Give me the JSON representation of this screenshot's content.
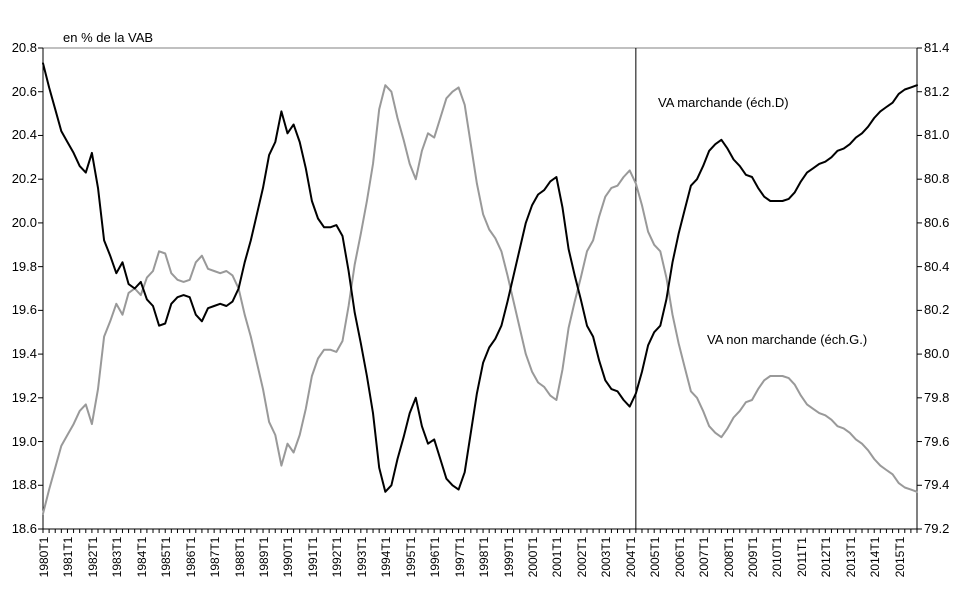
{
  "chart_data": {
    "type": "line",
    "title": "en % de la VAB",
    "x_start": "1980T1",
    "x_end": "2015T4",
    "x_tick_label_every": 4,
    "x_tick_labels": [
      "1980T1",
      "1981T1",
      "1982T1",
      "1983T1",
      "1984T1",
      "1985T1",
      "1986T1",
      "1987T1",
      "1988T1",
      "1989T1",
      "1990T1",
      "1991T1",
      "1992T1",
      "1993T1",
      "1994T1",
      "1995T1",
      "1996T1",
      "1997T1",
      "1998T1",
      "1999T1",
      "2000T1",
      "2001T1",
      "2002T1",
      "2003T1",
      "2004T1",
      "2005T1",
      "2006T1",
      "2007T1",
      "2008T1",
      "2009T1",
      "2010T1",
      "2011T1",
      "2012T1",
      "2013T1",
      "2014T1",
      "2015T1"
    ],
    "left_axis": {
      "min": 18.6,
      "max": 20.8,
      "step": 0.2,
      "ticks": [
        "20.8",
        "20.6",
        "20.4",
        "20.2",
        "20.0",
        "19.8",
        "19.6",
        "19.4",
        "19.2",
        "19.0",
        "18.8",
        "18.6"
      ]
    },
    "right_axis": {
      "min": 79.2,
      "max": 81.4,
      "step": 0.2,
      "ticks": [
        "81.4",
        "81.2",
        "81.0",
        "80.8",
        "80.6",
        "80.4",
        "80.2",
        "80.0",
        "79.8",
        "79.6",
        "79.4",
        "79.2"
      ]
    },
    "vertical_marker_quarter": "2004T2",
    "grid": "off",
    "colors": {
      "marchande": "#000000",
      "non_marchande": "#999999",
      "frame_top": "#808080",
      "axis": "#000000"
    },
    "series": [
      {
        "name": "VA marchande (éch.D)",
        "axis": "right",
        "color": "#000000",
        "values": [
          81.33,
          81.22,
          81.12,
          81.02,
          80.97,
          80.92,
          80.86,
          80.83,
          80.92,
          80.76,
          80.52,
          80.45,
          80.37,
          80.42,
          80.32,
          80.3,
          80.33,
          80.25,
          80.22,
          80.13,
          80.14,
          80.23,
          80.26,
          80.27,
          80.26,
          80.18,
          80.15,
          80.21,
          80.22,
          80.23,
          80.22,
          80.24,
          80.3,
          80.42,
          80.52,
          80.64,
          80.76,
          80.91,
          80.97,
          81.11,
          81.01,
          81.05,
          80.97,
          80.85,
          80.7,
          80.62,
          80.58,
          80.58,
          80.59,
          80.54,
          80.38,
          80.19,
          80.05,
          79.9,
          79.73,
          79.48,
          79.37,
          79.4,
          79.52,
          79.62,
          79.73,
          79.8,
          79.67,
          79.59,
          79.61,
          79.52,
          79.43,
          79.4,
          79.38,
          79.46,
          79.64,
          79.82,
          79.96,
          80.03,
          80.07,
          80.13,
          80.24,
          80.36,
          80.48,
          80.6,
          80.68,
          80.73,
          80.75,
          80.79,
          80.81,
          80.67,
          80.48,
          80.36,
          80.25,
          80.13,
          80.08,
          79.97,
          79.88,
          79.84,
          79.83,
          79.79,
          79.76,
          79.82,
          79.92,
          80.04,
          80.1,
          80.13,
          80.25,
          80.42,
          80.55,
          80.66,
          80.77,
          80.8,
          80.86,
          80.93,
          80.96,
          80.98,
          80.94,
          80.89,
          80.86,
          80.82,
          80.81,
          80.76,
          80.72,
          80.7,
          80.7,
          80.7,
          80.71,
          80.74,
          80.79,
          80.83,
          80.85,
          80.87,
          80.88,
          80.9,
          80.93,
          80.94,
          80.96,
          80.99,
          81.01,
          81.04,
          81.08,
          81.11,
          81.13,
          81.15,
          81.19,
          81.21,
          81.22,
          81.23
        ]
      },
      {
        "name": "VA non marchande (éch.G.)",
        "axis": "left",
        "color": "#999999",
        "values": [
          18.67,
          18.78,
          18.88,
          18.98,
          19.03,
          19.08,
          19.14,
          19.17,
          19.08,
          19.24,
          19.48,
          19.55,
          19.63,
          19.58,
          19.68,
          19.7,
          19.67,
          19.75,
          19.78,
          19.87,
          19.86,
          19.77,
          19.74,
          19.73,
          19.74,
          19.82,
          19.85,
          19.79,
          19.78,
          19.77,
          19.78,
          19.76,
          19.7,
          19.58,
          19.48,
          19.36,
          19.24,
          19.09,
          19.03,
          18.89,
          18.99,
          18.95,
          19.03,
          19.15,
          19.3,
          19.38,
          19.42,
          19.42,
          19.41,
          19.46,
          19.62,
          19.81,
          19.95,
          20.1,
          20.27,
          20.52,
          20.63,
          20.6,
          20.48,
          20.38,
          20.27,
          20.2,
          20.33,
          20.41,
          20.39,
          20.48,
          20.57,
          20.6,
          20.62,
          20.54,
          20.36,
          20.18,
          20.04,
          19.97,
          19.93,
          19.87,
          19.76,
          19.64,
          19.52,
          19.4,
          19.32,
          19.27,
          19.25,
          19.21,
          19.19,
          19.33,
          19.52,
          19.64,
          19.75,
          19.87,
          19.92,
          20.03,
          20.12,
          20.16,
          20.17,
          20.21,
          20.24,
          20.18,
          20.08,
          19.96,
          19.9,
          19.87,
          19.75,
          19.58,
          19.45,
          19.34,
          19.23,
          19.2,
          19.14,
          19.07,
          19.04,
          19.02,
          19.06,
          19.11,
          19.14,
          19.18,
          19.19,
          19.24,
          19.28,
          19.3,
          19.3,
          19.3,
          19.29,
          19.26,
          19.21,
          19.17,
          19.15,
          19.13,
          19.12,
          19.1,
          19.07,
          19.06,
          19.04,
          19.01,
          18.99,
          18.96,
          18.92,
          18.89,
          18.87,
          18.85,
          18.81,
          18.79,
          18.78,
          18.77
        ]
      }
    ]
  }
}
